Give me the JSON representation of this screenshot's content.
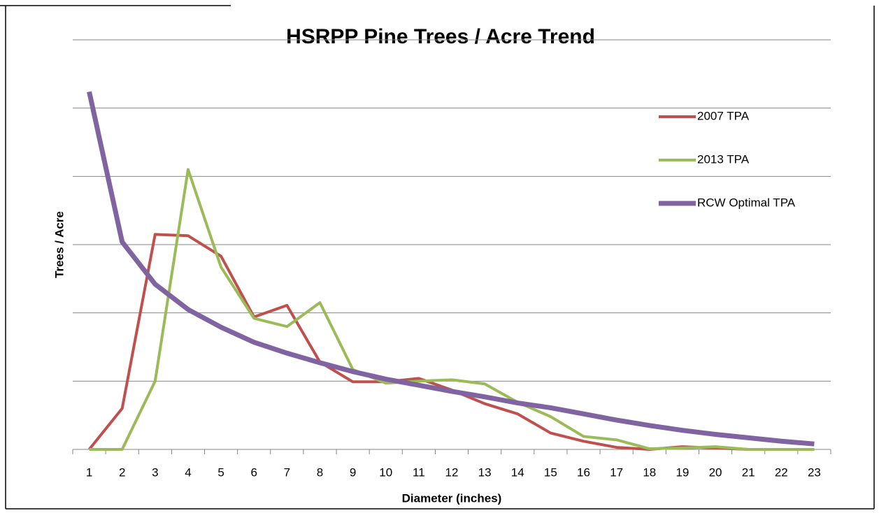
{
  "chart_data": {
    "type": "line",
    "title": "HSRPP Pine Trees / Acre Trend",
    "x_label": "Diameter (inches)",
    "y_label": "Trees / Acre",
    "categories": [
      "1",
      "2",
      "3",
      "4",
      "5",
      "6",
      "7",
      "8",
      "9",
      "10",
      "11",
      "12",
      "13",
      "14",
      "15",
      "16",
      "17",
      "18",
      "19",
      "20",
      "21",
      "22",
      "23"
    ],
    "series": [
      {
        "name": "2007 TPA",
        "color": "#c0504d",
        "width": 4,
        "values": [
          0,
          0.6,
          3.15,
          3.13,
          2.83,
          1.94,
          2.11,
          1.28,
          0.99,
          0.99,
          1.04,
          0.87,
          0.67,
          0.52,
          0.24,
          0.12,
          0.03,
          0,
          0.04,
          0.02,
          0,
          0,
          0
        ]
      },
      {
        "name": "2013 TPA",
        "color": "#9bbb59",
        "width": 4,
        "values": [
          0,
          0,
          1.0,
          4.1,
          2.67,
          1.92,
          1.8,
          2.15,
          1.17,
          0.97,
          1.0,
          1.02,
          0.96,
          0.69,
          0.48,
          0.19,
          0.14,
          0.01,
          0.02,
          0.04,
          0,
          0,
          0
        ]
      },
      {
        "name": "RCW Optimal TPA",
        "color": "#8064a2",
        "width": 7,
        "values": [
          5.24,
          3.04,
          2.42,
          2.05,
          1.79,
          1.57,
          1.41,
          1.27,
          1.14,
          1.03,
          0.94,
          0.85,
          0.77,
          0.68,
          0.61,
          0.52,
          0.43,
          0.35,
          0.28,
          0.22,
          0.17,
          0.12,
          0.08
        ]
      }
    ],
    "ylim": [
      0,
      6
    ],
    "yticks": [
      0,
      1,
      2,
      3,
      4,
      5,
      6
    ],
    "grid": true,
    "legend": "right"
  }
}
